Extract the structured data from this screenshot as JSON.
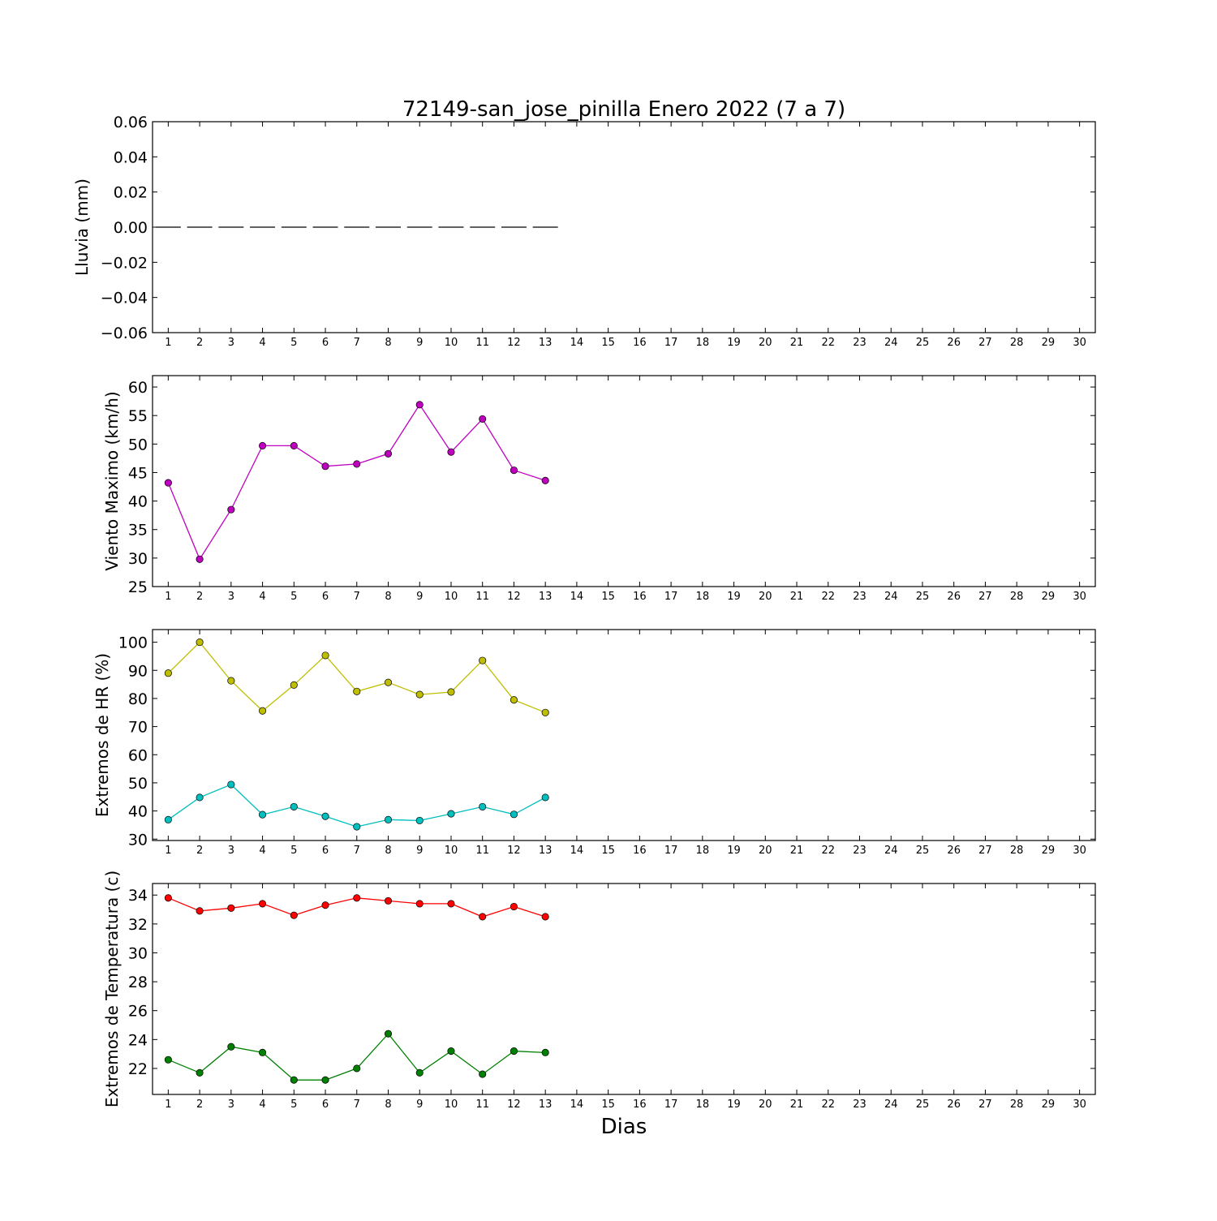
{
  "figure": {
    "title": "72149-san_jose_pinilla Enero 2022  (7 a 7)",
    "xlabel": "Dias"
  },
  "chart_data": [
    {
      "type": "bar",
      "ylabel": "Lluvia (mm)",
      "ylim": [
        -0.06,
        0.06
      ],
      "yticks": [
        0.06,
        0.04,
        0.02,
        0.0,
        -0.02,
        -0.04,
        -0.06
      ],
      "ytick_labels": [
        "0.06",
        "0.04",
        "0.02",
        "0.00",
        "−0.02",
        "−0.04",
        "−0.06"
      ],
      "xlim": [
        0.5,
        30.5
      ],
      "xticks": [
        1,
        2,
        3,
        4,
        5,
        6,
        7,
        8,
        9,
        10,
        11,
        12,
        13,
        14,
        15,
        16,
        17,
        18,
        19,
        20,
        21,
        22,
        23,
        24,
        25,
        26,
        27,
        28,
        29,
        30
      ],
      "categories": [
        1,
        2,
        3,
        4,
        5,
        6,
        7,
        8,
        9,
        10,
        11,
        12,
        13
      ],
      "series": [
        {
          "color": "#000000",
          "values": [
            0,
            0,
            0,
            0,
            0,
            0,
            0,
            0,
            0,
            0,
            0,
            0,
            0
          ]
        }
      ]
    },
    {
      "type": "line",
      "ylabel": "Viento Maximo (km/h)",
      "ylim": [
        25,
        62
      ],
      "yticks": [
        25,
        30,
        35,
        40,
        45,
        50,
        55,
        60
      ],
      "ytick_labels": [
        "25",
        "30",
        "35",
        "40",
        "45",
        "50",
        "55",
        "60"
      ],
      "xlim": [
        0.5,
        30.5
      ],
      "xticks": [
        1,
        2,
        3,
        4,
        5,
        6,
        7,
        8,
        9,
        10,
        11,
        12,
        13,
        14,
        15,
        16,
        17,
        18,
        19,
        20,
        21,
        22,
        23,
        24,
        25,
        26,
        27,
        28,
        29,
        30
      ],
      "x": [
        1,
        2,
        3,
        4,
        5,
        6,
        7,
        8,
        9,
        10,
        11,
        12,
        13
      ],
      "series": [
        {
          "color": "#bf00bf",
          "values": [
            43.2,
            29.8,
            38.5,
            49.7,
            49.7,
            46.1,
            46.5,
            48.3,
            56.9,
            48.6,
            54.4,
            45.4,
            43.6
          ]
        }
      ]
    },
    {
      "type": "line",
      "ylabel": "Extremos de HR (%)",
      "ylim": [
        29.5,
        104.5
      ],
      "yticks": [
        30,
        40,
        50,
        60,
        70,
        80,
        90,
        100
      ],
      "ytick_labels": [
        "30",
        "40",
        "50",
        "60",
        "70",
        "80",
        "90",
        "100"
      ],
      "xlim": [
        0.5,
        30.5
      ],
      "xticks": [
        1,
        2,
        3,
        4,
        5,
        6,
        7,
        8,
        9,
        10,
        11,
        12,
        13,
        14,
        15,
        16,
        17,
        18,
        19,
        20,
        21,
        22,
        23,
        24,
        25,
        26,
        27,
        28,
        29,
        30
      ],
      "x": [
        1,
        2,
        3,
        4,
        5,
        6,
        7,
        8,
        9,
        10,
        11,
        12,
        13
      ],
      "series": [
        {
          "color": "#bfbf00",
          "values": [
            89,
            100,
            86.3,
            75.6,
            84.8,
            95.3,
            82.5,
            85.7,
            81.4,
            82.3,
            93.5,
            79.5,
            75
          ]
        },
        {
          "color": "#00bfbf",
          "values": [
            36.9,
            44.8,
            49.4,
            38.7,
            41.5,
            38.1,
            34.4,
            36.9,
            36.6,
            39,
            41.5,
            38.8,
            44.8
          ]
        }
      ]
    },
    {
      "type": "line",
      "ylabel": "Extremos de Temperatura (c)",
      "ylim": [
        20.2,
        34.8
      ],
      "yticks": [
        22,
        24,
        26,
        28,
        30,
        32,
        34
      ],
      "ytick_labels": [
        "22",
        "24",
        "26",
        "28",
        "30",
        "32",
        "34"
      ],
      "xlim": [
        0.5,
        30.5
      ],
      "xticks": [
        1,
        2,
        3,
        4,
        5,
        6,
        7,
        8,
        9,
        10,
        11,
        12,
        13,
        14,
        15,
        16,
        17,
        18,
        19,
        20,
        21,
        22,
        23,
        24,
        25,
        26,
        27,
        28,
        29,
        30
      ],
      "x": [
        1,
        2,
        3,
        4,
        5,
        6,
        7,
        8,
        9,
        10,
        11,
        12,
        13
      ],
      "series": [
        {
          "color": "#ff0000",
          "values": [
            33.8,
            32.9,
            33.1,
            33.4,
            32.6,
            33.3,
            33.8,
            33.6,
            33.4,
            33.4,
            32.5,
            33.2,
            32.5
          ]
        },
        {
          "color": "#008000",
          "values": [
            22.6,
            21.7,
            23.5,
            23.1,
            21.2,
            21.2,
            22,
            24.4,
            21.7,
            23.2,
            21.6,
            23.2,
            23.1
          ]
        }
      ]
    }
  ]
}
